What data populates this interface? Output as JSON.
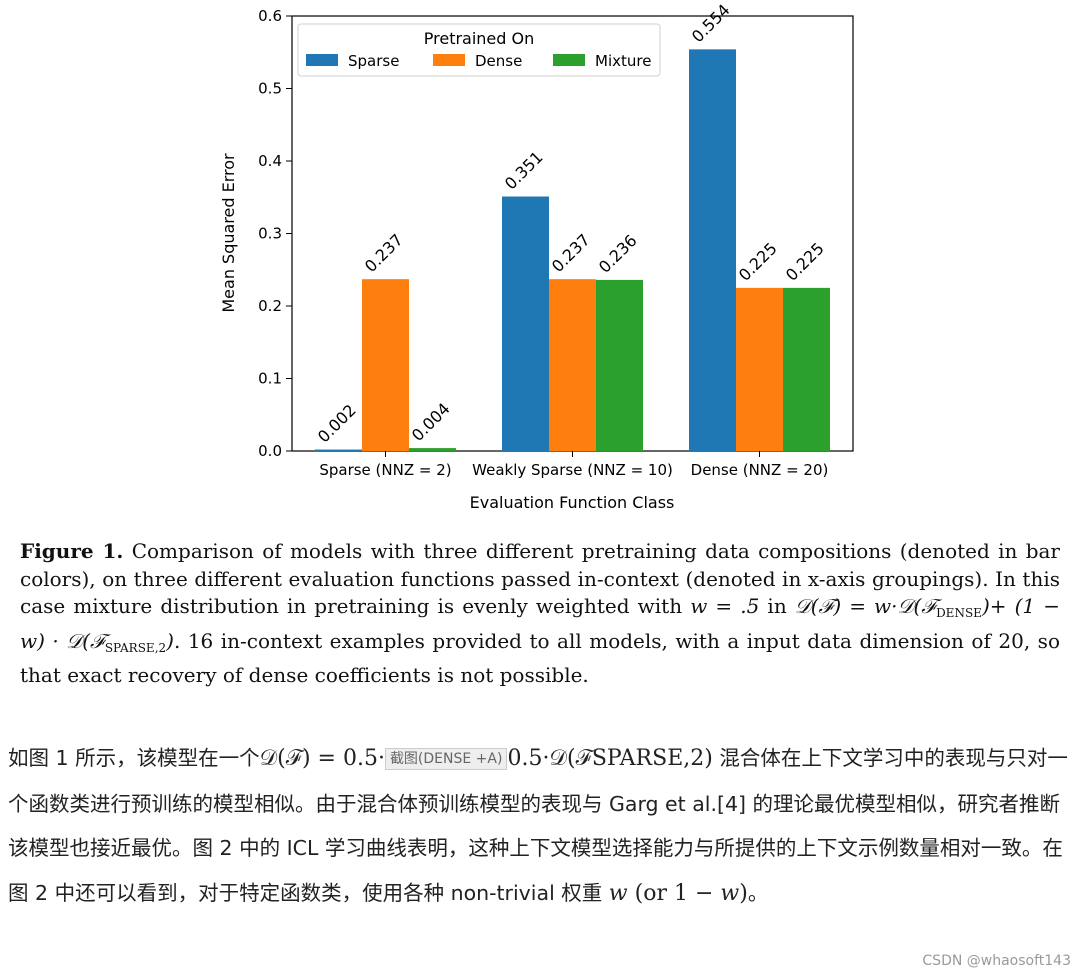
{
  "chart_data": {
    "type": "bar",
    "title": "",
    "xlabel": "Evaluation Function Class",
    "ylabel": "Mean Squared Error",
    "ylim": [
      0,
      0.6
    ],
    "yticks": [
      "0.0",
      "0.1",
      "0.2",
      "0.3",
      "0.4",
      "0.5",
      "0.6"
    ],
    "categories": [
      "Sparse (NNZ = 2)",
      "Weakly Sparse (NNZ = 10)",
      "Dense (NNZ = 20)"
    ],
    "legend": {
      "title": "Pretrained On",
      "placement": "top-left"
    },
    "series": [
      {
        "name": "Sparse",
        "color": "#1f77b4",
        "values": [
          0.002,
          0.351,
          0.554
        ],
        "labels": [
          "0.002",
          "0.351",
          "0.554"
        ]
      },
      {
        "name": "Dense",
        "color": "#ff7f0e",
        "values": [
          0.237,
          0.237,
          0.225
        ],
        "labels": [
          "0.237",
          "0.237",
          "0.225"
        ]
      },
      {
        "name": "Mixture",
        "color": "#2ca02c",
        "values": [
          0.004,
          0.236,
          0.225
        ],
        "labels": [
          "0.004",
          "0.236",
          "0.225"
        ]
      }
    ],
    "grid": false
  },
  "caption": {
    "label": "Figure 1.",
    "text_1": " Comparison of models with three different pretraining data compositions (denoted in bar colors), on three different evaluation functions passed in-context (denoted in x-axis groupings). In this case mixture distribution in pretraining is evenly weighted with ",
    "math_1": "w = .5",
    "text_2": " in ",
    "math_2": "𝒟(ℱ) = w·𝒟(ℱ",
    "math_2_sub": "DENSE",
    "math_2_end": ")+",
    "math_3": "(1 − w) · 𝒟(ℱ",
    "math_3_sub": "SPARSE,2",
    "math_3_end": ").",
    "text_3": " 16 in-context examples provided to all models, with a input data dimension of 20, so that exact recovery of dense coefficients is not possible."
  },
  "article": {
    "p1_a": "如图 1 所示，该模型在一个",
    "p1_math_a": "𝒟(ℱ) = 0.5·",
    "p1_artifact": "截图(DENSE +A)",
    "p1_math_b": "0.5·𝒟(ℱ",
    "p1_math_b_sub": "SPARSE,2",
    "p1_math_b_end": ")",
    "p1_b": " 混合体在上下文学习中的表现与只对一个函数类进行预训练的模型相似。由于混合体预训练模型的表现与 Garg et al.[4] 的理论最优模型相似，研究者推断该模型也接近最优。图 2 中的 ICL 学习曲线表明，这种上下文模型选择能力与所提供的上下文示例数量相对一致。在图 2 中还可以看到，对于特定函数类，使用各种 non-trivial 权重 ",
    "p1_math_c": "w",
    "p1_math_d": " (or 1 − ",
    "p1_math_e": "w",
    "p1_math_f": ")",
    "p1_c": "。"
  },
  "watermark": "CSDN @whaosoft143"
}
